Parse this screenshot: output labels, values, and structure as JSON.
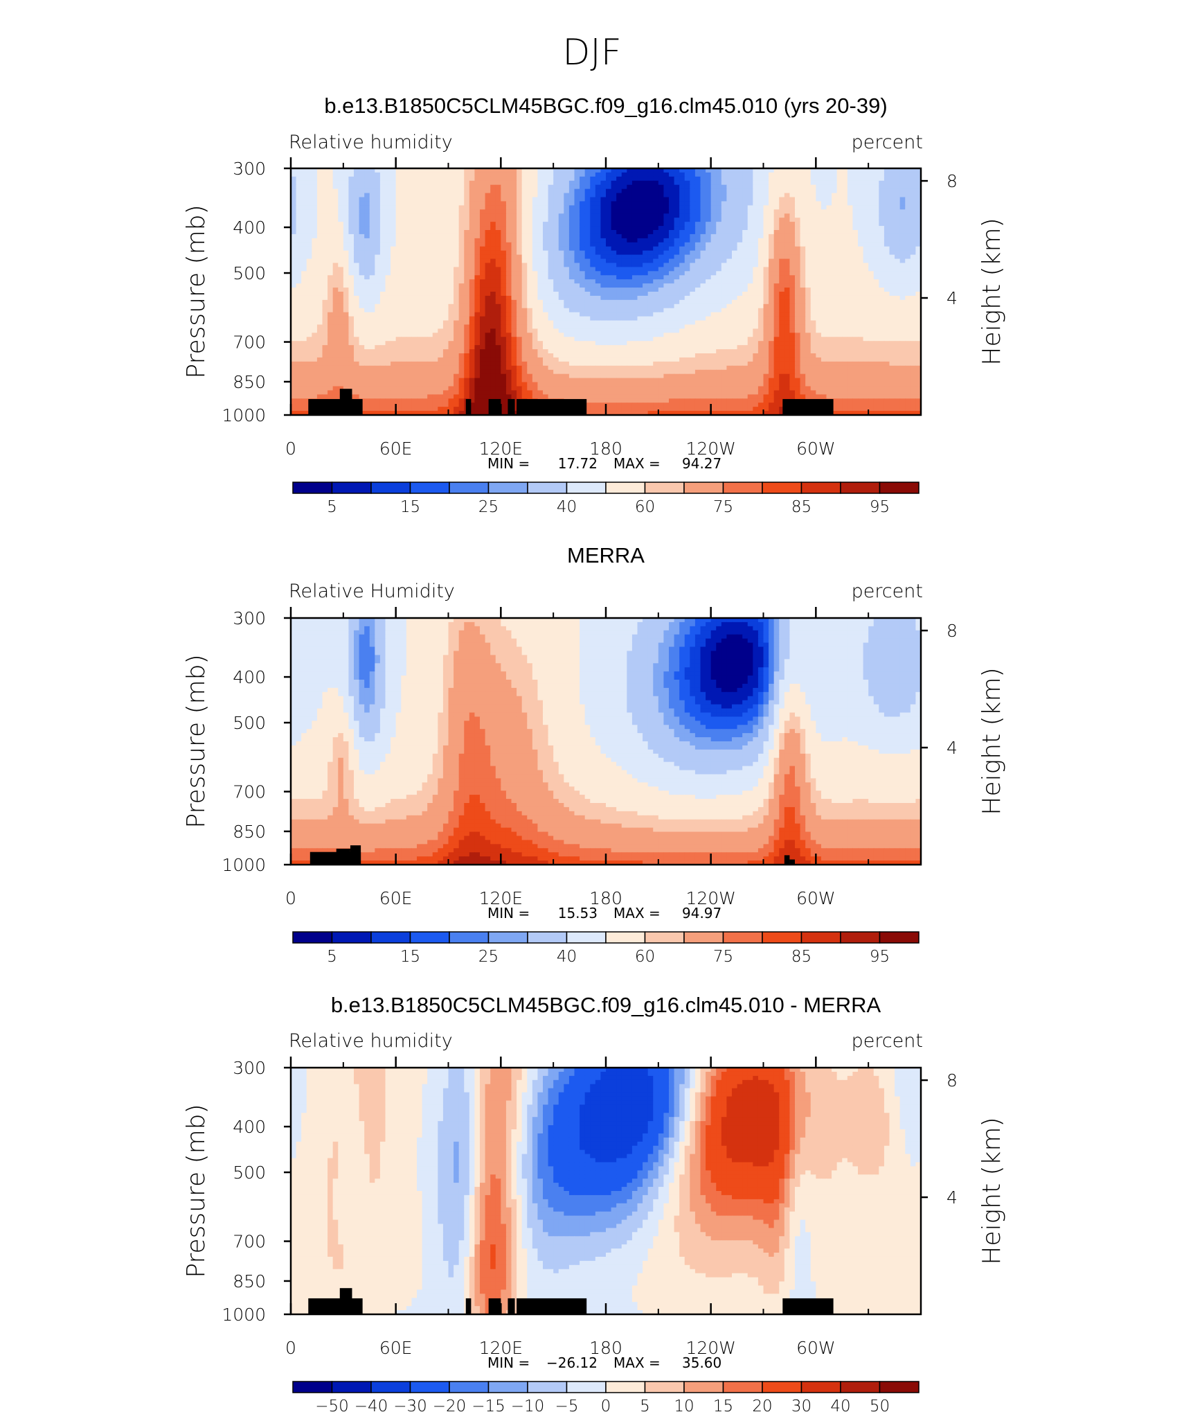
{
  "figure_title": "DJF",
  "chart_data": [
    {
      "type": "heatmap",
      "title": "b.e13.B1850C5CLM45BGC.f09_g16.clm45.010 (yrs 20-39)",
      "left_label": "Relative humidity",
      "right_label": "percent",
      "ylabel": "Pressure (mb)",
      "ylabel_right": "Height (km)",
      "yticks": [
        "300",
        "400",
        "500",
        "700",
        "850",
        "1000"
      ],
      "yticks_right": [
        "8",
        "4"
      ],
      "xticks": [
        "0",
        "60E",
        "120E",
        "180",
        "120W",
        "60W"
      ],
      "min_label": "MIN =",
      "min_value": "17.72",
      "max_label": "MAX =",
      "max_value": "94.27",
      "colorbar_labels": [
        "5",
        "15",
        "25",
        "40",
        "60",
        "75",
        "85",
        "95"
      ],
      "colors": [
        "#00008b",
        "#0018b4",
        "#0b3fdc",
        "#1c5af0",
        "#4a80f0",
        "#7fa7f3",
        "#b3caf7",
        "#dde9fb",
        "#fdebd9",
        "#fac8ae",
        "#f59f7c",
        "#f27149",
        "#ee4b19",
        "#d5320f",
        "#b01e0c",
        "#8a0b06"
      ],
      "contour_levels": [
        5,
        10,
        15,
        20,
        25,
        30,
        40,
        50,
        60,
        65,
        75,
        80,
        85,
        90,
        95
      ],
      "xlim": [
        0,
        360
      ],
      "ylim": [
        1000,
        300
      ]
    },
    {
      "type": "heatmap",
      "title": "MERRA",
      "left_label": "Relative Humidity",
      "right_label": "percent",
      "ylabel": "Pressure (mb)",
      "ylabel_right": "Height (km)",
      "yticks": [
        "300",
        "400",
        "500",
        "700",
        "850",
        "1000"
      ],
      "yticks_right": [
        "8",
        "4"
      ],
      "xticks": [
        "0",
        "60E",
        "120E",
        "180",
        "120W",
        "60W"
      ],
      "min_label": "MIN =",
      "min_value": "15.53",
      "max_label": "MAX =",
      "max_value": "94.97",
      "colorbar_labels": [
        "5",
        "15",
        "25",
        "40",
        "60",
        "75",
        "85",
        "95"
      ],
      "colors": [
        "#00008b",
        "#0018b4",
        "#0b3fdc",
        "#1c5af0",
        "#4a80f0",
        "#7fa7f3",
        "#b3caf7",
        "#dde9fb",
        "#fdebd9",
        "#fac8ae",
        "#f59f7c",
        "#f27149",
        "#ee4b19",
        "#d5320f",
        "#b01e0c",
        "#8a0b06"
      ],
      "xlim": [
        0,
        360
      ],
      "ylim": [
        1000,
        300
      ]
    },
    {
      "type": "heatmap",
      "title": "b.e13.B1850C5CLM45BGC.f09_g16.clm45.010 - MERRA",
      "left_label": "Relative humidity",
      "right_label": "percent",
      "ylabel": "Pressure (mb)",
      "ylabel_right": "Height (km)",
      "yticks": [
        "300",
        "400",
        "500",
        "700",
        "850",
        "1000"
      ],
      "yticks_right": [
        "8",
        "4"
      ],
      "xticks": [
        "0",
        "60E",
        "120E",
        "180",
        "120W",
        "60W"
      ],
      "min_label": "MIN =",
      "min_value": "−26.12",
      "max_label": "MAX =",
      "max_value": "35.60",
      "colorbar_labels": [
        "−50",
        "−40",
        "−30",
        "−20",
        "−15",
        "−10",
        "−5",
        "0",
        "5",
        "10",
        "15",
        "20",
        "30",
        "40",
        "50"
      ],
      "colors": [
        "#00008b",
        "#0018b4",
        "#0b3fdc",
        "#1c5af0",
        "#4a80f0",
        "#7fa7f3",
        "#b3caf7",
        "#dde9fb",
        "#fdebd9",
        "#fac8ae",
        "#f59f7c",
        "#f27149",
        "#ee4b19",
        "#d5320f",
        "#b01e0c",
        "#8a0b06"
      ],
      "xlim": [
        0,
        360
      ],
      "ylim": [
        1000,
        300
      ]
    }
  ]
}
